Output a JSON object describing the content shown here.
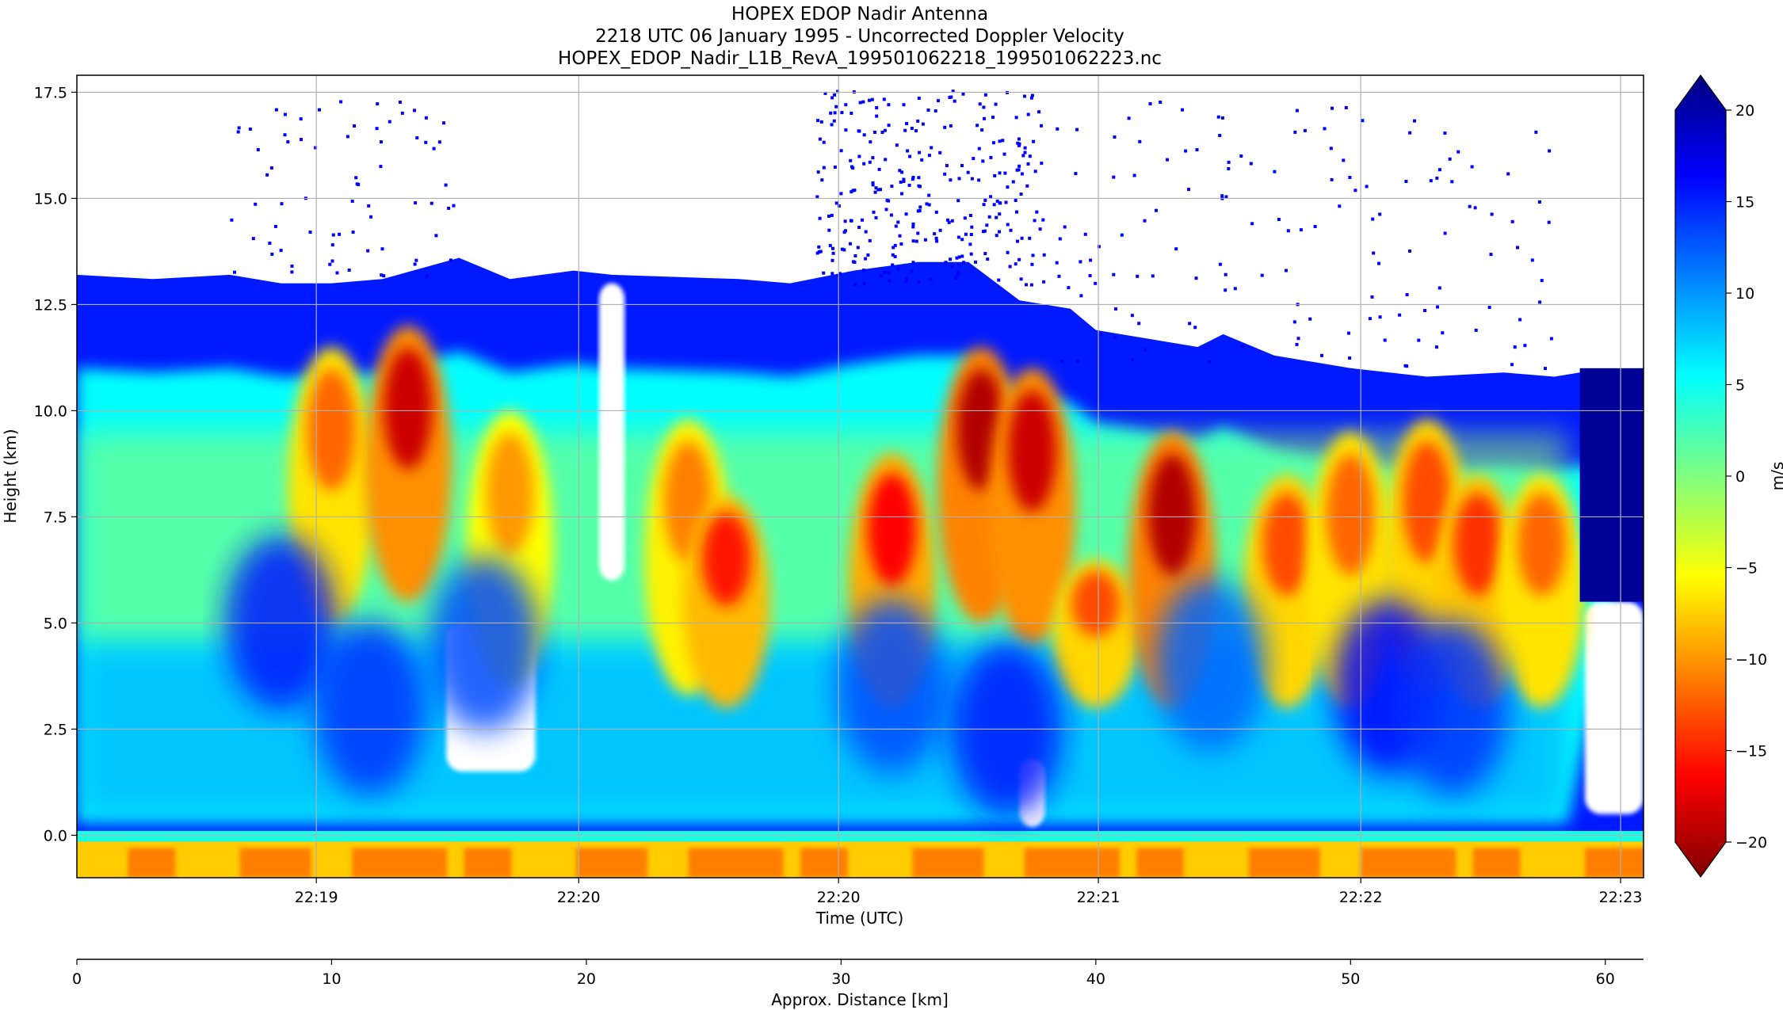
{
  "chart_data": {
    "type": "heatmap",
    "title_lines": [
      "HOPEX EDOP Nadir Antenna",
      "2218 UTC 06 January 1995 - Uncorrected Doppler Velocity",
      "HOPEX_EDOP_Nadir_L1B_RevA_199501062218_199501062223.nc"
    ],
    "xlabel": "Time (UTC)",
    "ylabel": "Height (km)",
    "x2label": "Approx. Distance [km]",
    "colorbar_label": "m/s",
    "colormap": "jet_r",
    "colorbar_colors": [
      "#00007f",
      "#0000ff",
      "#007fff",
      "#00ffff",
      "#7fff7f",
      "#ffff00",
      "#ff7f00",
      "#ff0000",
      "#7f0000"
    ],
    "xlim_distance_km": [
      0,
      61.5
    ],
    "ylim_km": [
      -1.0,
      17.9
    ],
    "clim": [
      -20,
      20
    ],
    "grid": true,
    "yticks": [
      {
        "value": 0.0,
        "label": "0.0"
      },
      {
        "value": 2.5,
        "label": "2.5"
      },
      {
        "value": 5.0,
        "label": "5.0"
      },
      {
        "value": 7.5,
        "label": "7.5"
      },
      {
        "value": 10.0,
        "label": "10.0"
      },
      {
        "value": 12.5,
        "label": "12.5"
      },
      {
        "value": 15.0,
        "label": "15.0"
      },
      {
        "value": 17.5,
        "label": "17.5"
      }
    ],
    "xticks_time": [
      {
        "distance_km": 9.4,
        "label": "22:19"
      },
      {
        "distance_km": 19.7,
        "label": "22:20"
      },
      {
        "distance_km": 29.9,
        "label": "22:20"
      },
      {
        "distance_km": 40.1,
        "label": "22:21"
      },
      {
        "distance_km": 50.4,
        "label": "22:22"
      },
      {
        "distance_km": 60.6,
        "label": "22:23"
      }
    ],
    "xticks_distance": [
      {
        "value": 0,
        "label": "0"
      },
      {
        "value": 10,
        "label": "10"
      },
      {
        "value": 20,
        "label": "20"
      },
      {
        "value": 30,
        "label": "30"
      },
      {
        "value": 40,
        "label": "40"
      },
      {
        "value": 50,
        "label": "50"
      },
      {
        "value": 60,
        "label": "60"
      }
    ],
    "colorbar_ticks": [
      {
        "value": 20,
        "label": "20"
      },
      {
        "value": 15,
        "label": "15"
      },
      {
        "value": 10,
        "label": "10"
      },
      {
        "value": 5,
        "label": "5"
      },
      {
        "value": 0,
        "label": "0"
      },
      {
        "value": -5,
        "label": "−5"
      },
      {
        "value": -10,
        "label": "−10"
      },
      {
        "value": -15,
        "label": "−15"
      },
      {
        "value": -20,
        "label": "−20"
      }
    ],
    "echo_top_profile_km": [
      {
        "x": 0,
        "top": 13.2
      },
      {
        "x": 3,
        "top": 13.1
      },
      {
        "x": 6,
        "top": 13.2
      },
      {
        "x": 8,
        "top": 13.0
      },
      {
        "x": 10,
        "top": 13.0
      },
      {
        "x": 12,
        "top": 13.1
      },
      {
        "x": 15,
        "top": 13.6
      },
      {
        "x": 17,
        "top": 13.1
      },
      {
        "x": 19.5,
        "top": 13.3
      },
      {
        "x": 21,
        "top": 13.2
      },
      {
        "x": 26,
        "top": 13.1
      },
      {
        "x": 28,
        "top": 13.0
      },
      {
        "x": 30.5,
        "top": 13.3
      },
      {
        "x": 33,
        "top": 13.5
      },
      {
        "x": 35,
        "top": 13.5
      },
      {
        "x": 37,
        "top": 12.6
      },
      {
        "x": 39,
        "top": 12.4
      },
      {
        "x": 40,
        "top": 11.9
      },
      {
        "x": 44,
        "top": 11.5
      },
      {
        "x": 45,
        "top": 11.8
      },
      {
        "x": 47,
        "top": 11.3
      },
      {
        "x": 50,
        "top": 11.0
      },
      {
        "x": 53,
        "top": 10.8
      },
      {
        "x": 56,
        "top": 10.9
      },
      {
        "x": 58,
        "top": 10.8
      },
      {
        "x": 59,
        "top": 10.9
      },
      {
        "x": 61.5,
        "top": 11.0
      }
    ],
    "updraft_cells": [
      {
        "x": 10,
        "top": 11.5,
        "v": -11
      },
      {
        "x": 13,
        "top": 12.0,
        "v": -17
      },
      {
        "x": 17,
        "top": 10.0,
        "v": -9
      },
      {
        "x": 24,
        "top": 9.8,
        "v": -10
      },
      {
        "x": 25.5,
        "top": 8.0,
        "v": -14
      },
      {
        "x": 32,
        "top": 9.0,
        "v": -15
      },
      {
        "x": 35.5,
        "top": 11.5,
        "v": -18
      },
      {
        "x": 37.5,
        "top": 11.0,
        "v": -17
      },
      {
        "x": 40,
        "top": 6.5,
        "v": -12
      },
      {
        "x": 43,
        "top": 9.5,
        "v": -18
      },
      {
        "x": 47.5,
        "top": 8.5,
        "v": -12
      },
      {
        "x": 50,
        "top": 9.5,
        "v": -11
      },
      {
        "x": 53,
        "top": 9.8,
        "v": -12
      },
      {
        "x": 55,
        "top": 8.5,
        "v": -13
      },
      {
        "x": 57.5,
        "top": 8.5,
        "v": -11
      }
    ],
    "downdraft_cells": [
      {
        "x": 8,
        "y": 5.0,
        "v": 14
      },
      {
        "x": 11.5,
        "y": 3.0,
        "v": 13
      },
      {
        "x": 16,
        "y": 4.5,
        "v": 12
      },
      {
        "x": 32,
        "y": 3.5,
        "v": 12
      },
      {
        "x": 36.5,
        "y": 2.5,
        "v": 14
      },
      {
        "x": 44.5,
        "y": 4.0,
        "v": 11
      },
      {
        "x": 51.5,
        "y": 3.5,
        "v": 15
      },
      {
        "x": 54,
        "y": 3.0,
        "v": 13
      }
    ],
    "clear_air_gaps": [
      {
        "x0": 20.5,
        "x1": 21.5,
        "y0": 6.0,
        "y1": 13.0
      },
      {
        "x0": 14.5,
        "x1": 18.0,
        "y0": 1.5,
        "y1": 5.0
      },
      {
        "x0": 37.0,
        "x1": 38.0,
        "y0": 0.2,
        "y1": 1.8
      },
      {
        "x0": 59.2,
        "x1": 61.5,
        "y0": 0.5,
        "y1": 5.5
      }
    ]
  }
}
